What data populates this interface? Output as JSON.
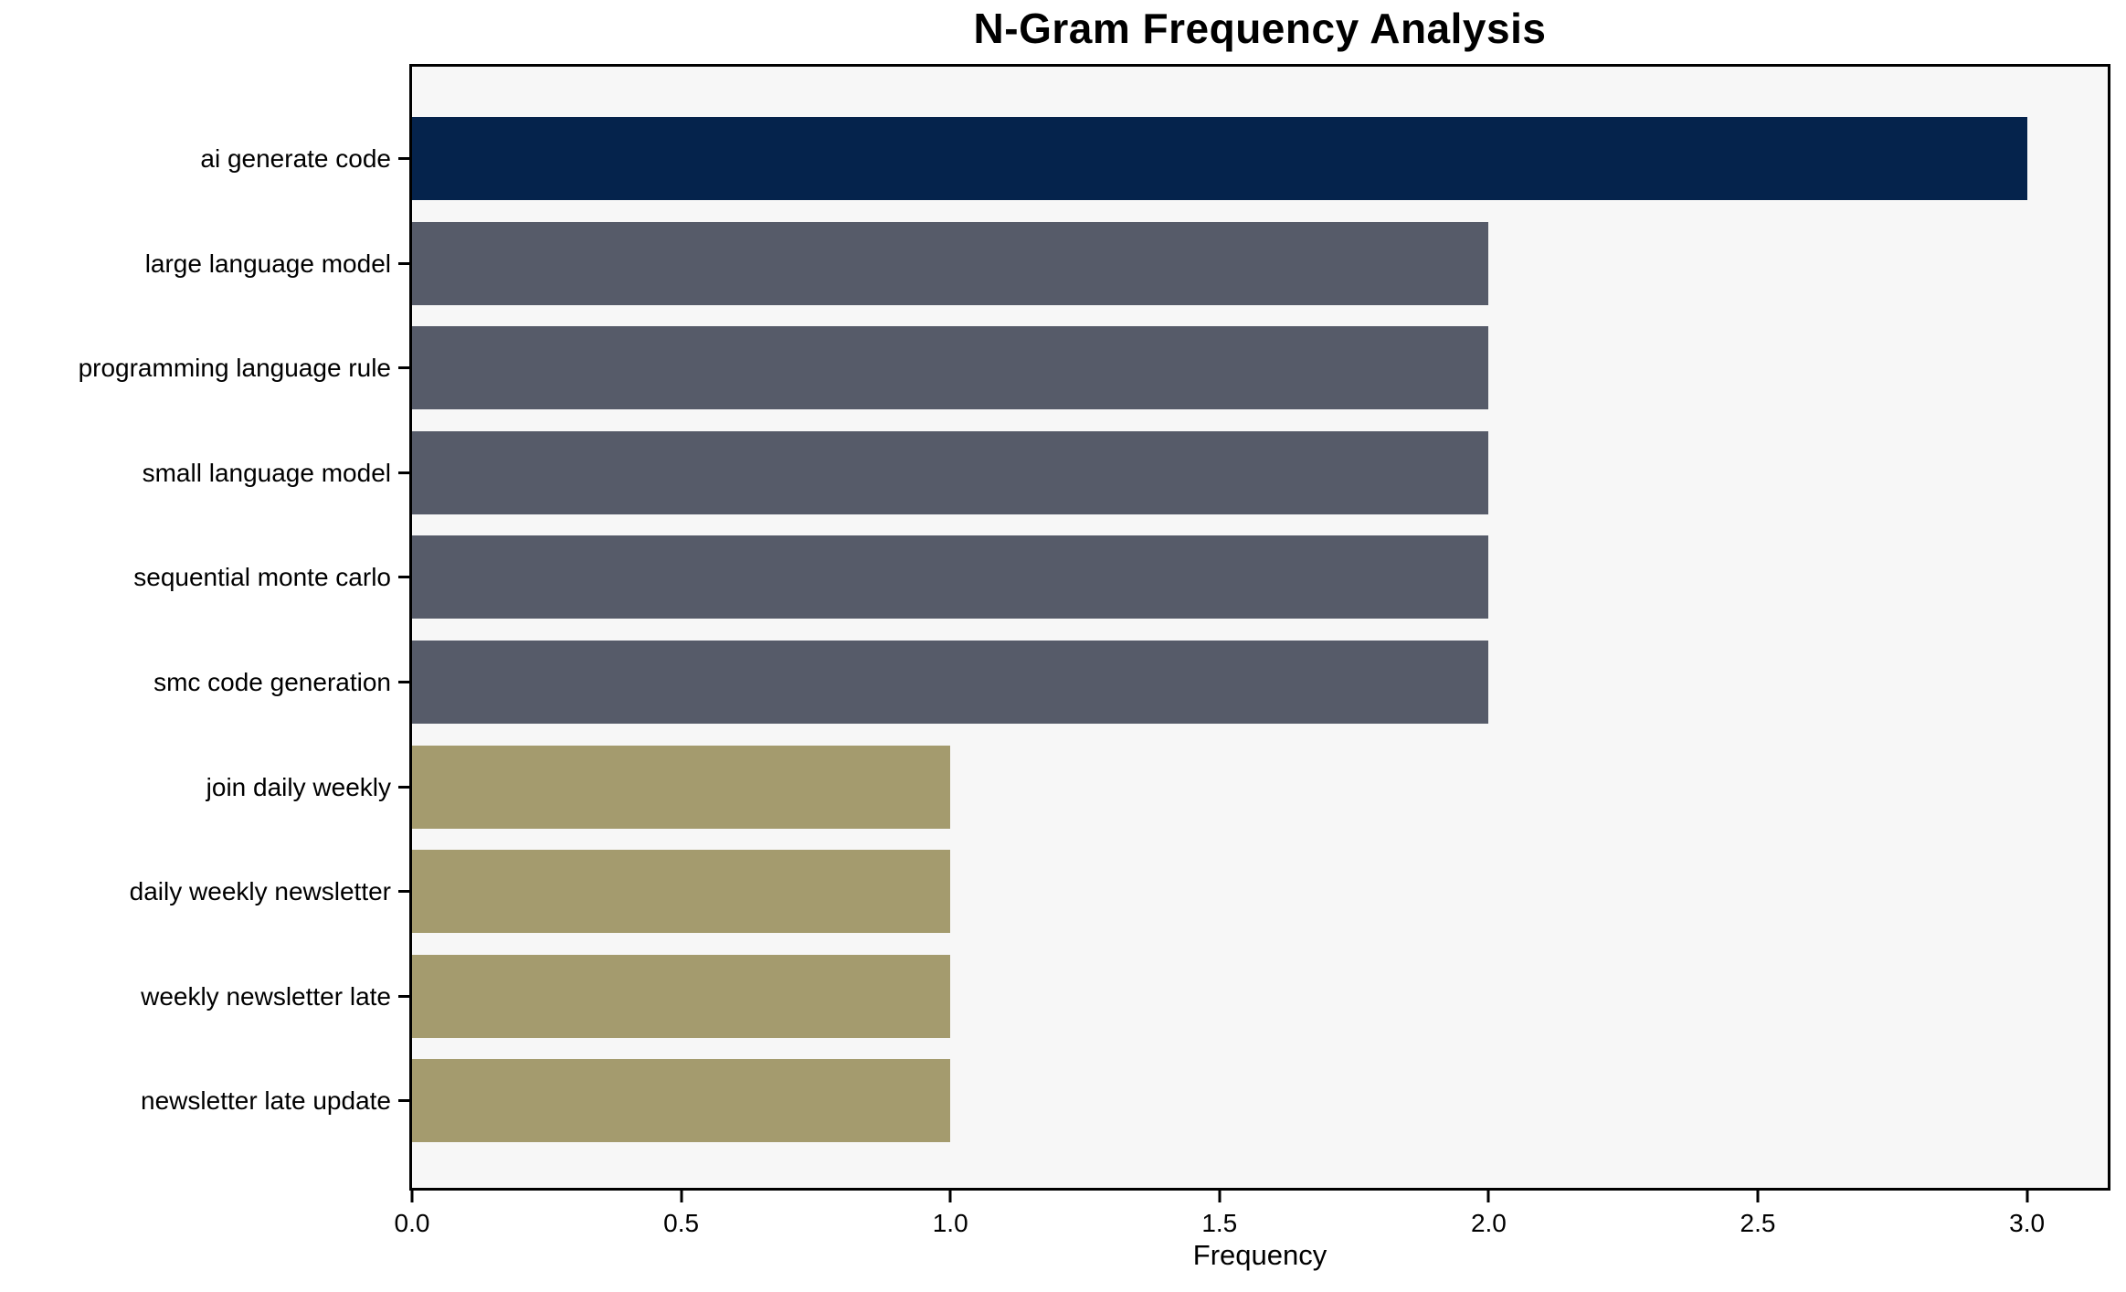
{
  "chart_data": {
    "type": "bar",
    "orientation": "horizontal",
    "title": "N-Gram Frequency Analysis",
    "xlabel": "Frequency",
    "ylabel": "",
    "categories": [
      "ai generate code",
      "large language model",
      "programming language rule",
      "small language model",
      "sequential monte carlo",
      "smc code generation",
      "join daily weekly",
      "daily weekly newsletter",
      "weekly newsletter late",
      "newsletter late update"
    ],
    "values": [
      3,
      2,
      2,
      2,
      2,
      2,
      1,
      1,
      1,
      1
    ],
    "bar_colors": [
      "#05234c",
      "#565b69",
      "#565b69",
      "#565b69",
      "#565b69",
      "#565b69",
      "#a49b6e",
      "#a49b6e",
      "#a49b6e",
      "#a49b6e"
    ],
    "palette": {
      "frequency_3": "#05234c",
      "frequency_2": "#565b69",
      "frequency_1": "#a49b6e",
      "plot_background": "#f7f7f7",
      "spine": "#000000",
      "text": "#000000"
    },
    "xlim": [
      0,
      3.15
    ],
    "xticks": [
      0,
      0.5,
      1,
      1.5,
      2,
      2.5,
      3
    ],
    "xtick_labels": [
      "0.0",
      "0.5",
      "1.0",
      "1.5",
      "2.0",
      "2.5",
      "3.0"
    ],
    "grid": false,
    "legend": null
  }
}
